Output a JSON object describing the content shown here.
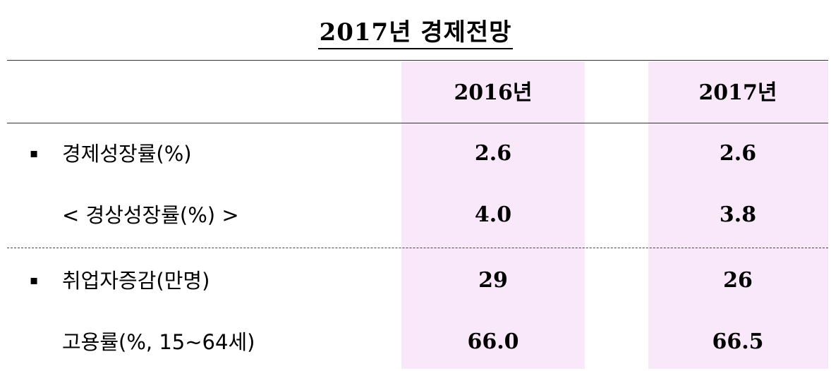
{
  "title": "2017년  경제전망",
  "header": {
    "col1": "2016년",
    "col2": "2017년"
  },
  "rows": [
    {
      "bullet": "▪",
      "label": "경제성장률(%)",
      "v2016": "2.6",
      "v2017": "2.6"
    },
    {
      "bullet": "",
      "label": "<  경상성장률(%)  >",
      "v2016": "4.0",
      "v2017": "3.8"
    },
    {
      "bullet": "▪",
      "label": "취업자증감(만명)",
      "v2016": "29",
      "v2017": "26"
    },
    {
      "bullet": "",
      "label": "고용률(%,  15~64세)",
      "v2016": "66.0",
      "v2017": "66.5"
    }
  ],
  "colors": {
    "column_highlight": "#f9e8f9"
  }
}
